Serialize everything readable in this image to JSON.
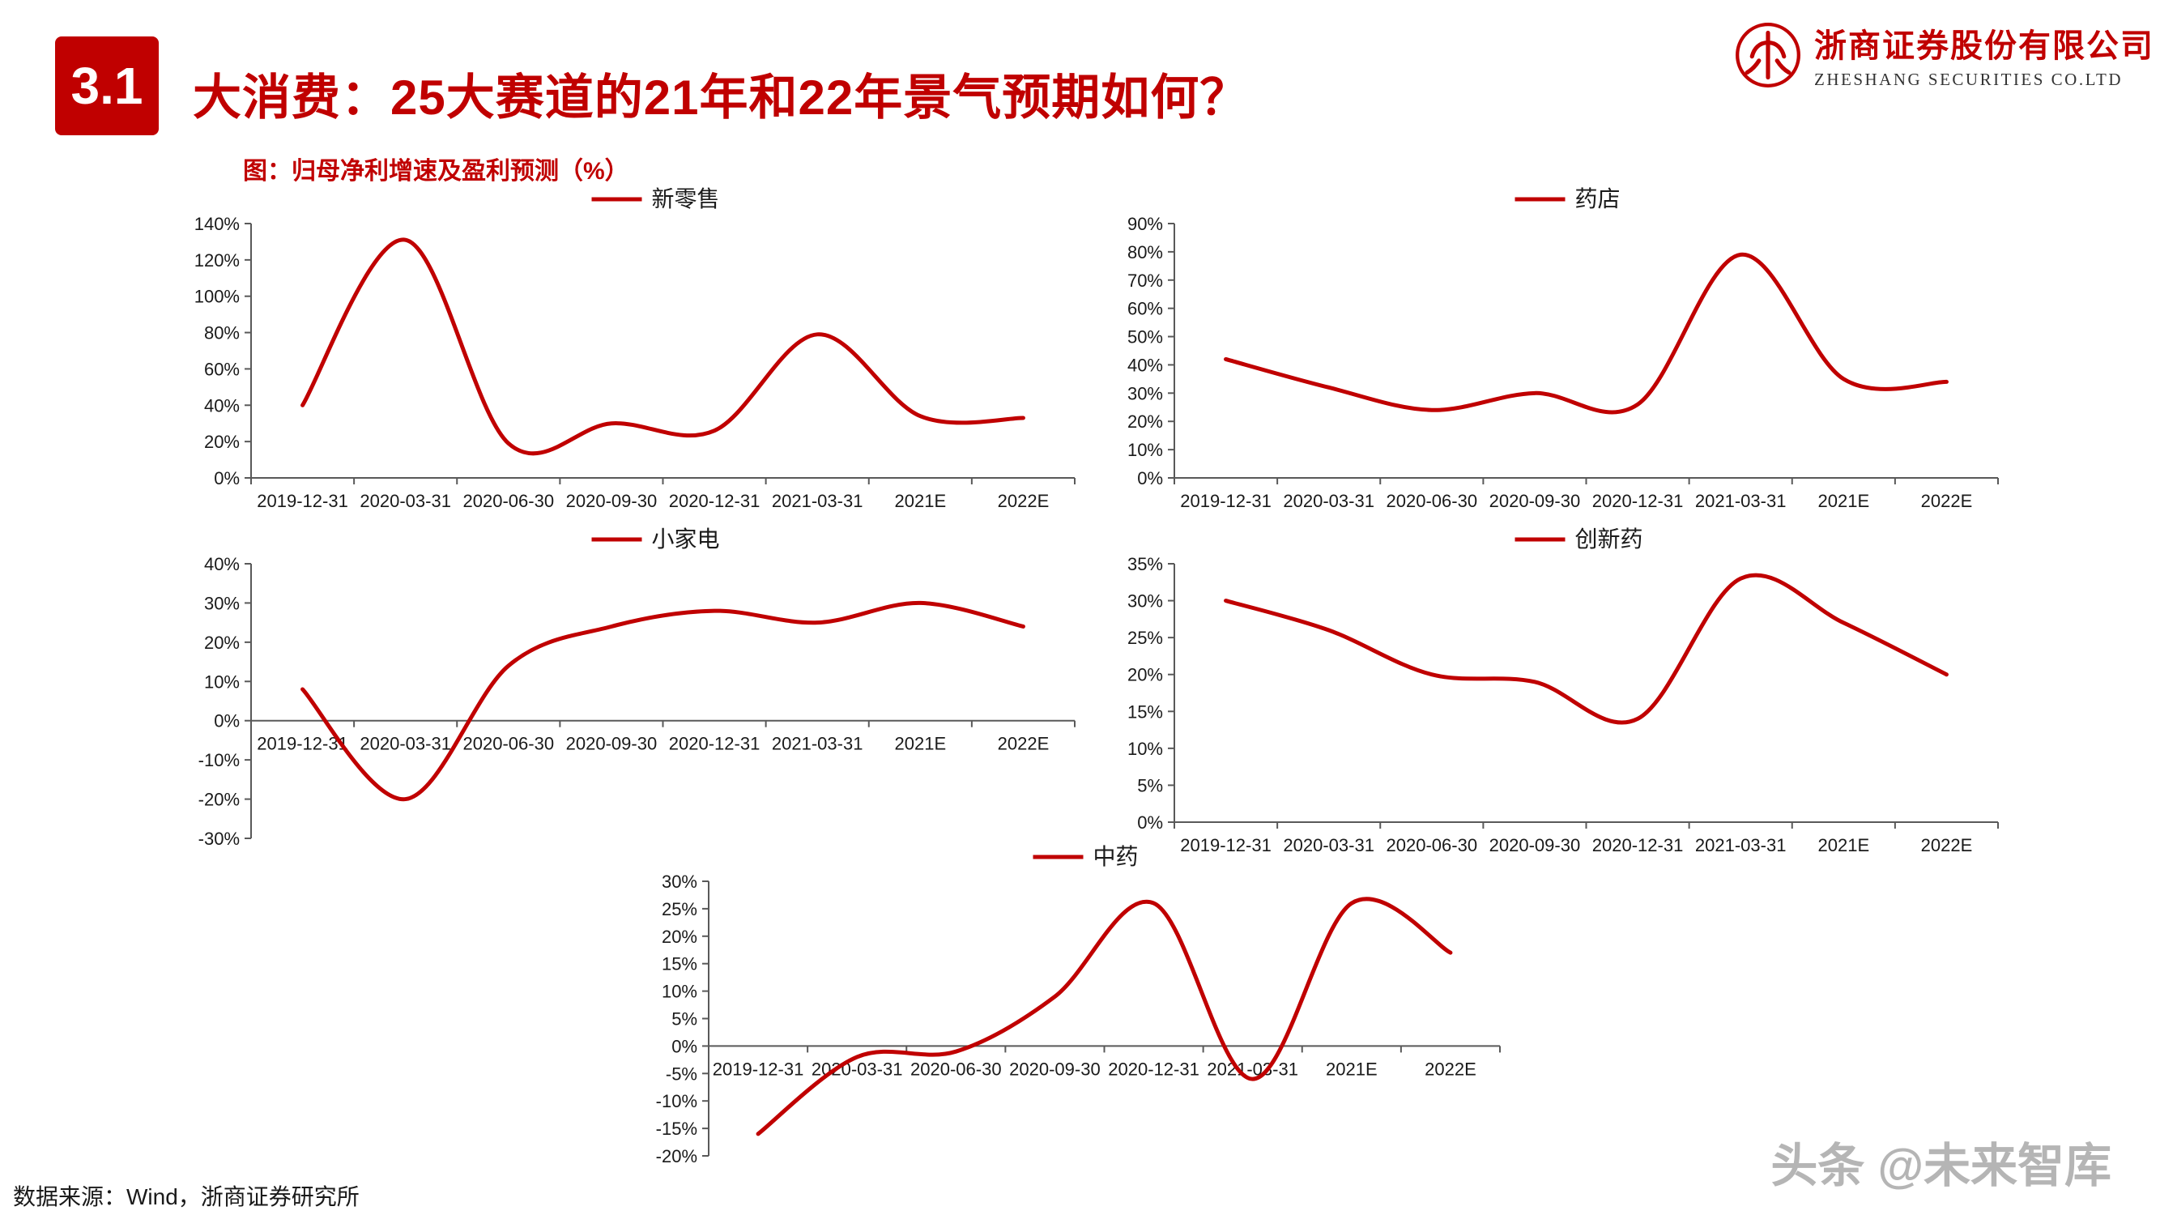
{
  "header": {
    "section_number": "3.1",
    "title": "大消费：25大赛道的21年和22年景气预期如何？",
    "subtitle": "图：归母净利增速及盈利预测（%）"
  },
  "logo": {
    "company_cn": "浙商证券股份有限公司",
    "company_en": "ZHESHANG SECURITIES CO.LTD"
  },
  "footer": {
    "source": "数据来源：Wind，浙商证券研究所",
    "watermark": "头条 @未来智库"
  },
  "colors": {
    "accent": "#C00000",
    "axis": "#595959",
    "text": "#1a1a1a",
    "watermark": "#b5b5b5"
  },
  "chart_data": [
    {
      "type": "line",
      "id": "new-retail",
      "name": "新零售",
      "categories": [
        "2019-12-31",
        "2020-03-31",
        "2020-06-30",
        "2020-09-30",
        "2020-12-31",
        "2021-03-31",
        "2021E",
        "2022E"
      ],
      "values": [
        40,
        131,
        19,
        30,
        26,
        79,
        34,
        33
      ],
      "ylim": [
        0,
        140
      ],
      "ystep": 20,
      "grid": false,
      "legend_position": "top-center"
    },
    {
      "type": "line",
      "id": "pharmacy",
      "name": "药店",
      "categories": [
        "2019-12-31",
        "2020-03-31",
        "2020-06-30",
        "2020-09-30",
        "2020-12-31",
        "2021-03-31",
        "2021E",
        "2022E"
      ],
      "values": [
        42,
        32,
        24,
        30,
        26,
        79,
        35,
        34
      ],
      "ylim": [
        0,
        90
      ],
      "ystep": 10,
      "grid": false,
      "legend_position": "top-center"
    },
    {
      "type": "line",
      "id": "small-appliances",
      "name": "小家电",
      "categories": [
        "2019-12-31",
        "2020-03-31",
        "2020-06-30",
        "2020-09-30",
        "2020-12-31",
        "2021-03-31",
        "2021E",
        "2022E"
      ],
      "values": [
        8,
        -20,
        14,
        24,
        28,
        25,
        30,
        24
      ],
      "ylim": [
        -30,
        40
      ],
      "ystep": 10,
      "grid": false,
      "legend_position": "top-center"
    },
    {
      "type": "line",
      "id": "innovative-drugs",
      "name": "创新药",
      "categories": [
        "2019-12-31",
        "2020-03-31",
        "2020-06-30",
        "2020-09-30",
        "2020-12-31",
        "2021-03-31",
        "2021E",
        "2022E"
      ],
      "values": [
        30,
        26,
        20,
        19,
        14,
        33,
        27,
        20
      ],
      "ylim": [
        0,
        35
      ],
      "ystep": 5,
      "grid": false,
      "legend_position": "top-center"
    },
    {
      "type": "line",
      "id": "tcm",
      "name": "中药",
      "categories": [
        "2019-12-31",
        "2020-03-31",
        "2020-06-30",
        "2020-09-30",
        "2020-12-31",
        "2021-03-31",
        "2021E",
        "2022E"
      ],
      "values": [
        -16,
        -2,
        -1,
        9,
        26,
        -6,
        26,
        17
      ],
      "ylim": [
        -20,
        30
      ],
      "ystep": 5,
      "grid": false,
      "legend_position": "top-center"
    }
  ]
}
